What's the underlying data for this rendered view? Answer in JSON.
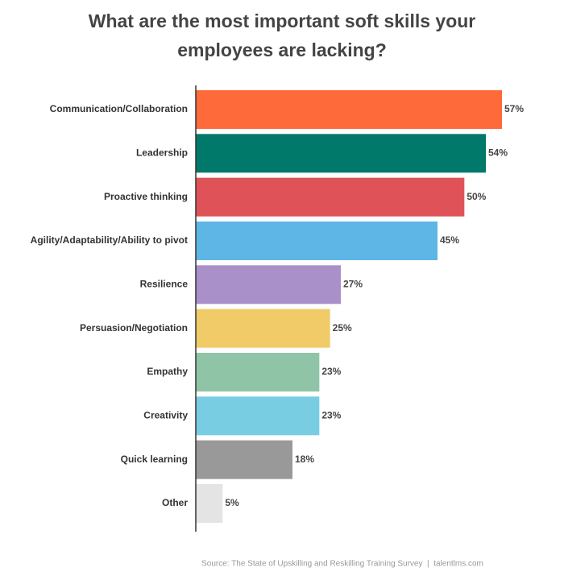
{
  "chart_data": {
    "type": "bar",
    "orientation": "horizontal",
    "title": "What are the most important soft skills your employees are lacking?",
    "categories": [
      "Communication/Collaboration",
      "Leadership",
      "Proactive thinking",
      "Agility/Adaptability/Ability to pivot",
      "Resilience",
      "Persuasion/Negotiation",
      "Empathy",
      "Creativity",
      "Quick learning",
      "Other"
    ],
    "values": [
      57,
      54,
      50,
      45,
      27,
      25,
      23,
      23,
      18,
      5
    ],
    "value_labels": [
      "57%",
      "54%",
      "50%",
      "45%",
      "27%",
      "25%",
      "23%",
      "23%",
      "18%",
      "5%"
    ],
    "colors": [
      "#ff6a3b",
      "#00786a",
      "#df5358",
      "#5db6e5",
      "#aa90c8",
      "#f0cb68",
      "#8fc4a7",
      "#78cde2",
      "#999999",
      "#e4e4e4"
    ],
    "source": "Source: The State of Upskilling and Reskilling Training Survey  |  talentlms.com"
  }
}
